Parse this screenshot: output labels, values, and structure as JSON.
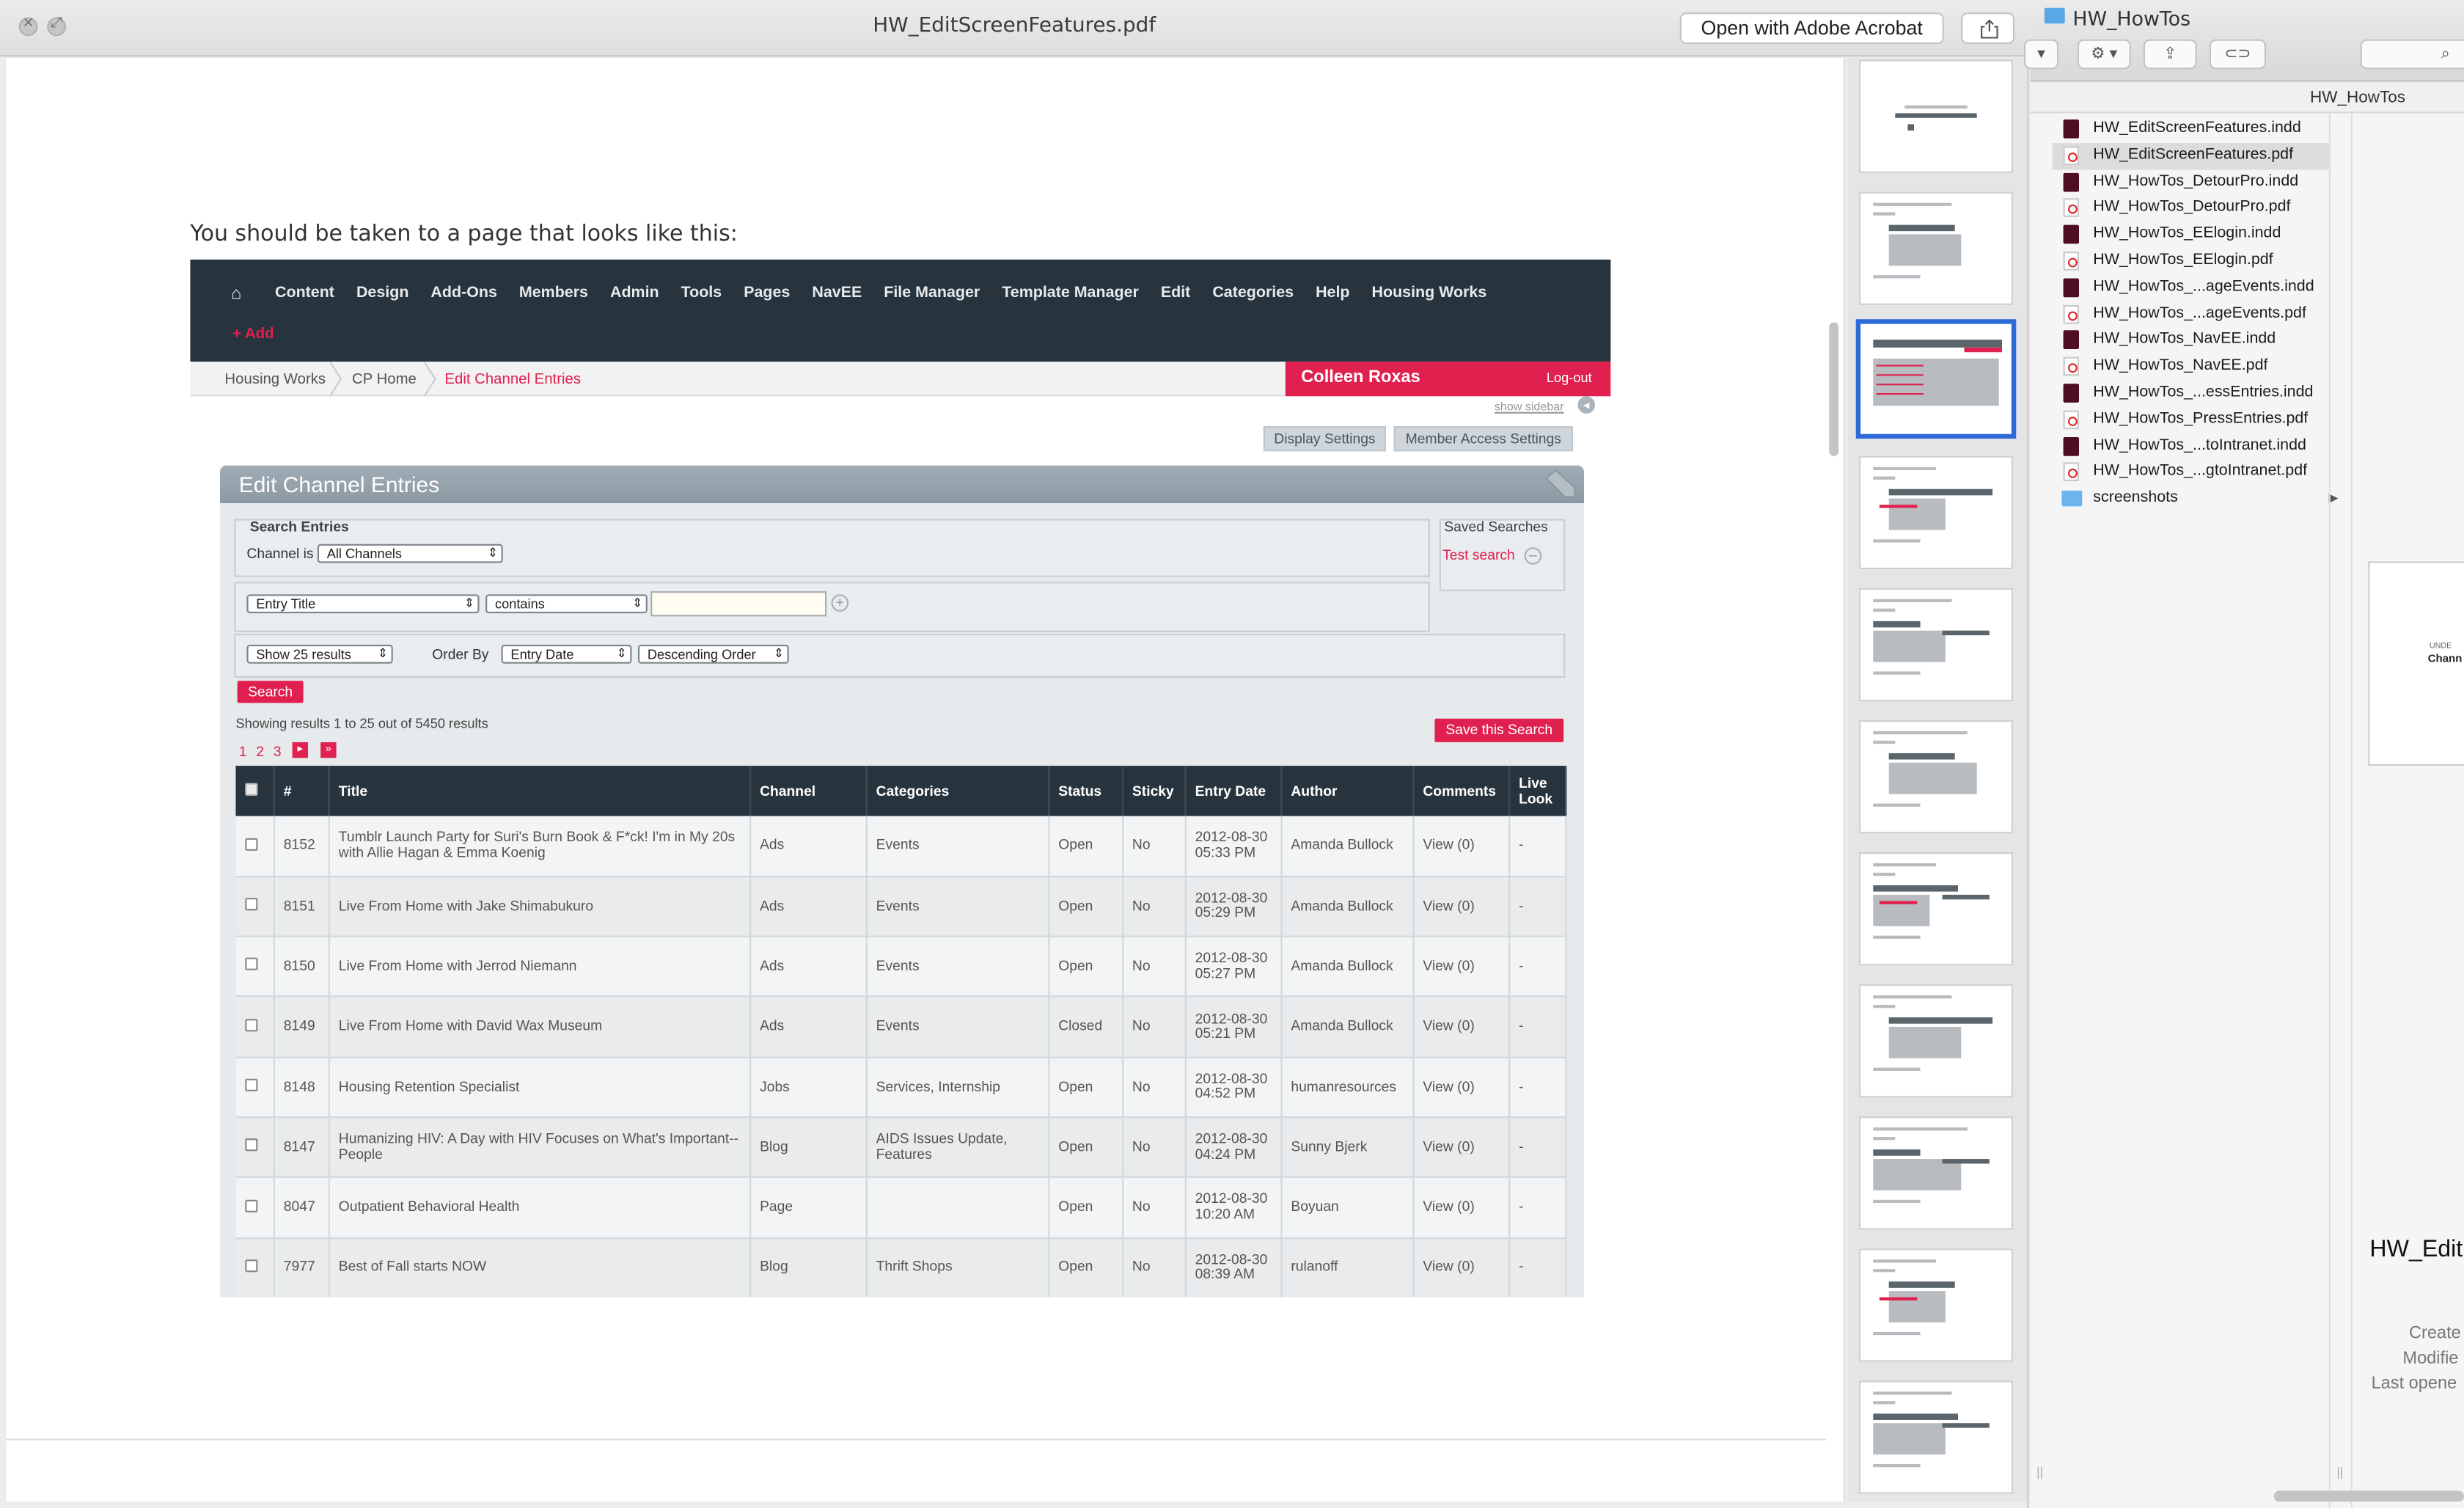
{
  "quicklook": {
    "title": "HW_EditScreenFeatures.pdf",
    "open_with": "Open with Adobe Acrobat",
    "intro_text": "You should be taken to a page that looks like this:"
  },
  "ee": {
    "nav": [
      "Content",
      "Design",
      "Add-Ons",
      "Members",
      "Admin",
      "Tools",
      "Pages",
      "NavEE",
      "File Manager",
      "Template Manager",
      "Edit",
      "Categories",
      "Help",
      "Housing Works"
    ],
    "add_label": "+ Add",
    "breadcrumbs": [
      "Housing Works",
      "CP Home",
      "Edit Channel Entries"
    ],
    "user_name": "Colleen Roxas",
    "logout": "Log-out",
    "show_sidebar": "show sidebar",
    "display_settings": "Display Settings",
    "member_access": "Member Access Settings",
    "panel_title": "Edit Channel Entries",
    "search_entries_legend": "Search Entries",
    "channel_is_label": "Channel is",
    "channel_value": "All Channels",
    "saved_searches_legend": "Saved Searches",
    "test_search": "Test search",
    "field_value": "Entry Title",
    "operator_value": "contains",
    "show_results": "Show 25 results",
    "order_by_label": "Order By",
    "order_field": "Entry Date",
    "order_dir": "Descending Order",
    "search_btn": "Search",
    "showing": "Showing results 1 to 25 out of 5450 results",
    "save_search": "Save this Search",
    "pages": [
      "1",
      "2",
      "3"
    ],
    "columns": [
      "#",
      "Title",
      "Channel",
      "Categories",
      "Status",
      "Sticky",
      "Entry Date",
      "Author",
      "Comments",
      "Live Look"
    ],
    "rows": [
      {
        "id": "8152",
        "title": "Tumblr Launch Party for Suri's Burn Book & F*ck! I'm in My 20s with Allie Hagan & Emma Koenig",
        "channel": "Ads",
        "categories": "Events",
        "status": "Open",
        "sticky": "No",
        "date": "2012-08-30 05:33 PM",
        "author": "Amanda Bullock",
        "comments": "View (0)",
        "live": "-"
      },
      {
        "id": "8151",
        "title": "Live From Home with Jake Shimabukuro",
        "channel": "Ads",
        "categories": "Events",
        "status": "Open",
        "sticky": "No",
        "date": "2012-08-30 05:29 PM",
        "author": "Amanda Bullock",
        "comments": "View (0)",
        "live": "-"
      },
      {
        "id": "8150",
        "title": "Live From Home with Jerrod Niemann",
        "channel": "Ads",
        "categories": "Events",
        "status": "Open",
        "sticky": "No",
        "date": "2012-08-30 05:27 PM",
        "author": "Amanda Bullock",
        "comments": "View (0)",
        "live": "-"
      },
      {
        "id": "8149",
        "title": "Live From Home with David Wax Museum",
        "channel": "Ads",
        "categories": "Events",
        "status": "Closed",
        "sticky": "No",
        "date": "2012-08-30 05:21 PM",
        "author": "Amanda Bullock",
        "comments": "View (0)",
        "live": "-"
      },
      {
        "id": "8148",
        "title": "Housing Retention Specialist",
        "channel": "Jobs",
        "categories": "Services, Internship",
        "status": "Open",
        "sticky": "No",
        "date": "2012-08-30 04:52 PM",
        "author": "humanresources",
        "comments": "View (0)",
        "live": "-"
      },
      {
        "id": "8147",
        "title": "Humanizing HIV: A Day with HIV Focuses on What's Important--People",
        "channel": "Blog",
        "categories": "AIDS Issues Update, Features",
        "status": "Open",
        "sticky": "No",
        "date": "2012-08-30 04:24 PM",
        "author": "Sunny Bjerk",
        "comments": "View (0)",
        "live": "-"
      },
      {
        "id": "8047",
        "title": "Outpatient Behavioral Health",
        "channel": "Page",
        "categories": "",
        "status": "Open",
        "sticky": "No",
        "date": "2012-08-30 10:20 AM",
        "author": "Boyuan",
        "comments": "View (0)",
        "live": "-"
      },
      {
        "id": "7977",
        "title": "Best of Fall starts NOW",
        "channel": "Blog",
        "categories": "Thrift Shops",
        "status": "Open",
        "sticky": "No",
        "date": "2012-08-30 08:39 AM",
        "author": "rulanoff",
        "comments": "View (0)",
        "live": "-"
      }
    ]
  },
  "finder": {
    "title": "HW_HowTos",
    "column_header": "HW_HowTos",
    "files": [
      {
        "name": "HW_EditScreenFeatures.indd",
        "type": "indd",
        "selected": false
      },
      {
        "name": "HW_EditScreenFeatures.pdf",
        "type": "pdf",
        "selected": true
      },
      {
        "name": "HW_HowTos_DetourPro.indd",
        "type": "indd",
        "selected": false
      },
      {
        "name": "HW_HowTos_DetourPro.pdf",
        "type": "pdf",
        "selected": false
      },
      {
        "name": "HW_HowTos_EElogin.indd",
        "type": "indd",
        "selected": false
      },
      {
        "name": "HW_HowTos_EElogin.pdf",
        "type": "pdf",
        "selected": false
      },
      {
        "name": "HW_HowTos_...ageEvents.indd",
        "type": "indd",
        "selected": false
      },
      {
        "name": "HW_HowTos_...ageEvents.pdf",
        "type": "pdf",
        "selected": false
      },
      {
        "name": "HW_HowTos_NavEE.indd",
        "type": "indd",
        "selected": false
      },
      {
        "name": "HW_HowTos_NavEE.pdf",
        "type": "pdf",
        "selected": false
      },
      {
        "name": "HW_HowTos_...essEntries.indd",
        "type": "indd",
        "selected": false
      },
      {
        "name": "HW_HowTos_PressEntries.pdf",
        "type": "pdf",
        "selected": false
      },
      {
        "name": "HW_HowTos_...toIntranet.indd",
        "type": "indd",
        "selected": false
      },
      {
        "name": "HW_HowTos_...gtoIntranet.pdf",
        "type": "pdf",
        "selected": false
      },
      {
        "name": "screenshots",
        "type": "folder",
        "selected": false
      }
    ],
    "preview_name": "HW_Edit",
    "preview_line1": "UNDE",
    "preview_line2": "Chann",
    "meta": [
      "Create",
      "Modifie",
      "Last opene"
    ]
  },
  "colors": {
    "accent": "#e0204e",
    "nav": "#27343d",
    "selection": "#2d6ad8",
    "open": "#1e9b2c"
  }
}
